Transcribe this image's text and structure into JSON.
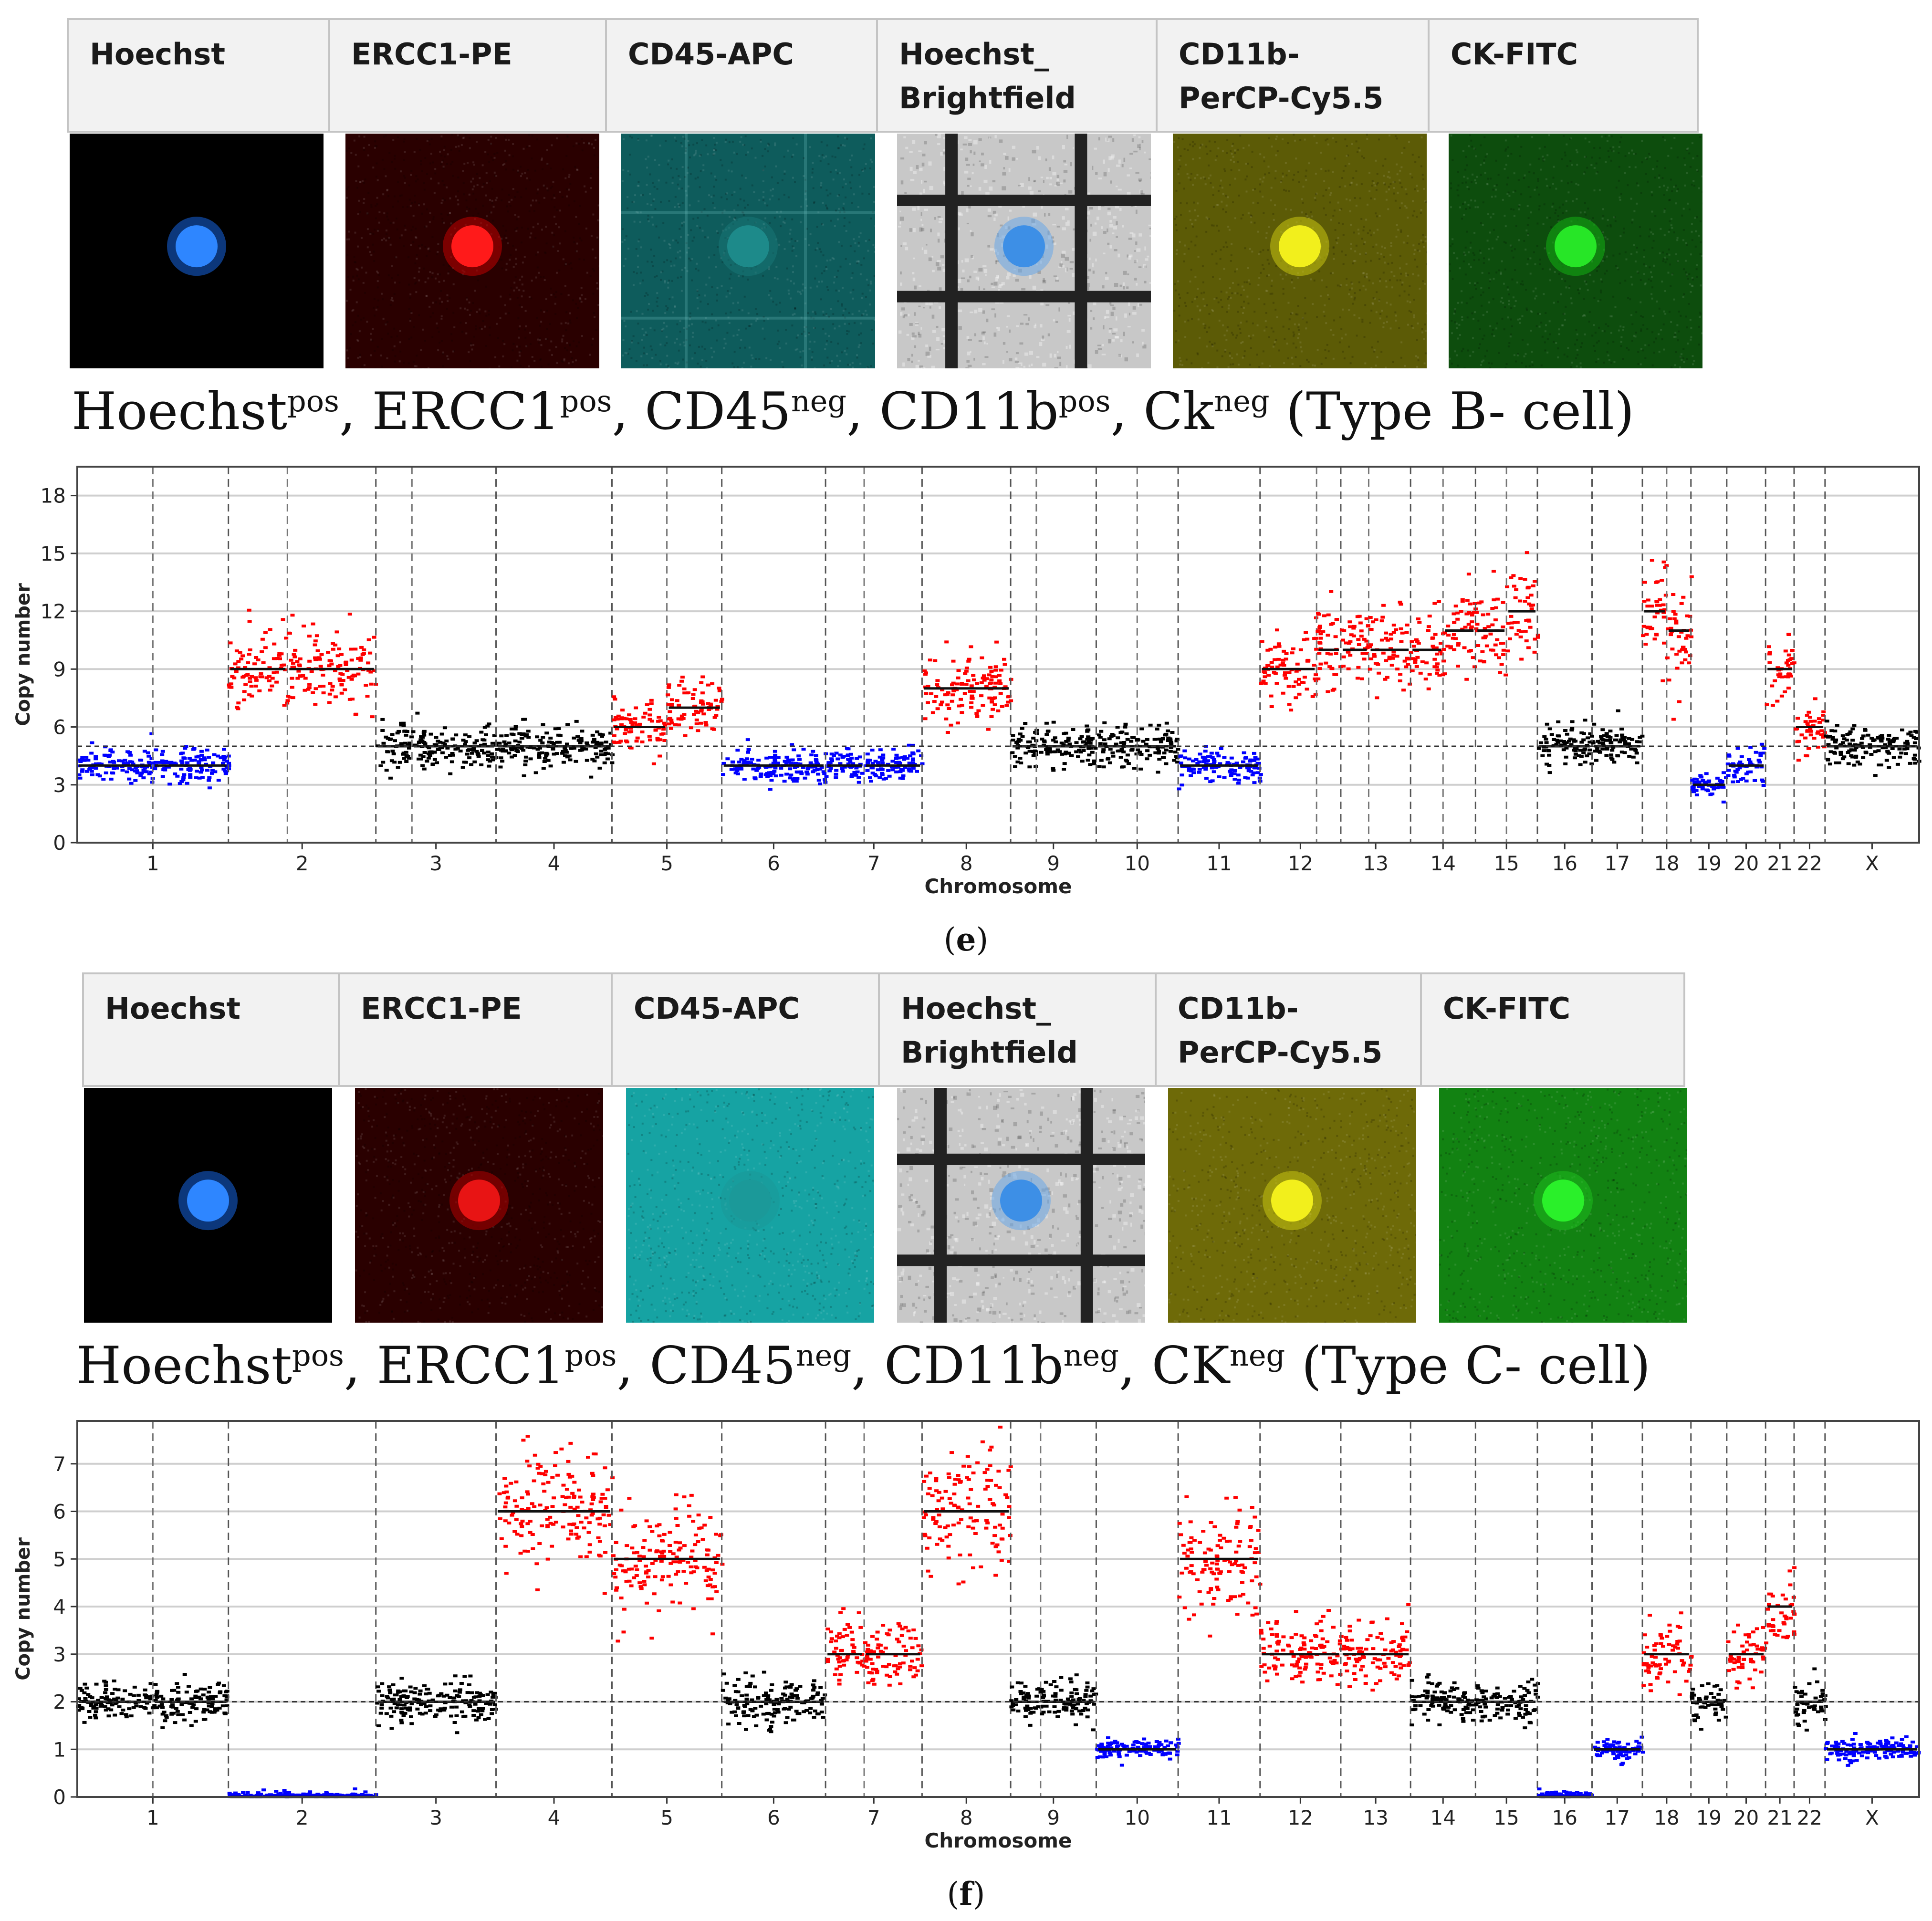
{
  "panels": [
    {
      "label_open": "(",
      "label_letter": "e",
      "label_close": ")",
      "channels": [
        {
          "label": "Hoechst",
          "bg": "#000000",
          "dot": "#2e86ff",
          "dot_glow": "#1565e0",
          "pattern": "none"
        },
        {
          "label": "ERCC1-PE",
          "bg": "#2a0000",
          "dot": "#ff1a1a",
          "dot_glow": "#c00000",
          "pattern": "noise"
        },
        {
          "label": "CD45-APC",
          "bg": "#0e5c5c",
          "dot": "#1d8a8a",
          "dot_glow": "#177777",
          "pattern": "grid"
        },
        {
          "label": "Hoechst_\nBrightfield",
          "bg": "#c8c8c8",
          "dot": "#3d8fe6",
          "dot_glow": "#6aa8e8",
          "pattern": "bf"
        },
        {
          "label": "CD11b-\nPerCP-Cy5.5",
          "bg": "#5c5b06",
          "dot": "#f2ef1c",
          "dot_glow": "#c9c412",
          "pattern": "noise"
        },
        {
          "label": "CK-FITC",
          "bg": "#0d4d0d",
          "dot": "#27e627",
          "dot_glow": "#14b014",
          "pattern": "noise"
        }
      ],
      "marker_text": {
        "hoechst": "Hoechst",
        "hoechst_sup": "pos",
        "ercc1": "ERCC1",
        "ercc1_sup": "pos",
        "cd45": "CD45",
        "cd45_sup": "neg",
        "cd11b": "CD11b",
        "cd11b_sup": "pos",
        "ck": "Ck",
        "ck_sup": "neg",
        "type": "(Type B- cell)"
      }
    },
    {
      "label_open": "(",
      "label_letter": "f",
      "label_close": ")",
      "channels": [
        {
          "label": "Hoechst",
          "bg": "#000000",
          "dot": "#2e86ff",
          "dot_glow": "#1565e0",
          "pattern": "none"
        },
        {
          "label": "ERCC1-PE",
          "bg": "#2a0000",
          "dot": "#e81414",
          "dot_glow": "#b00000",
          "pattern": "noise"
        },
        {
          "label": "CD45-APC",
          "bg": "#16a3a3",
          "dot": "#1b9999",
          "dot_glow": "#1b9999",
          "pattern": "noise"
        },
        {
          "label": "Hoechst_\nBrightfield",
          "bg": "#c8c8c8",
          "dot": "#3d8fe6",
          "dot_glow": "#6aa8e8",
          "pattern": "bf"
        },
        {
          "label": "CD11b-\nPerCP-Cy5.5",
          "bg": "#6e6a08",
          "dot": "#f2ef1c",
          "dot_glow": "#c9c412",
          "pattern": "noise"
        },
        {
          "label": "CK-FITC",
          "bg": "#128212",
          "dot": "#2af02a",
          "dot_glow": "#1dbd1d",
          "pattern": "noise"
        }
      ],
      "marker_text": {
        "hoechst": "Hoechst",
        "hoechst_sup": "pos",
        "ercc1": "ERCC1",
        "ercc1_sup": "pos",
        "cd45": "CD45",
        "cd45_sup": "neg",
        "cd11b": "CD11b",
        "cd11b_sup": "neg",
        "ck": "CK",
        "ck_sup": "neg",
        "type": "(Type C- cell)"
      }
    }
  ],
  "colors": {
    "gain": "#ff0000",
    "loss": "#0000ff",
    "neutral": "#000000"
  },
  "chart_data": [
    {
      "type": "scatter",
      "title": "",
      "xlabel": "Chromosome",
      "ylabel": "Copy number",
      "ylim": [
        0,
        19.5
      ],
      "yticks": [
        0,
        3,
        6,
        9,
        12,
        15,
        18
      ],
      "baseline": 5,
      "grid": true,
      "chromosomes": [
        {
          "name": "1",
          "size": 249,
          "segments": [
            {
              "f": 0.5,
              "v": 4
            },
            {
              "f": 0.5,
              "v": 4
            }
          ]
        },
        {
          "name": "2",
          "size": 243,
          "segments": [
            {
              "f": 0.4,
              "v": 9
            },
            {
              "f": 0.6,
              "v": 9
            }
          ]
        },
        {
          "name": "3",
          "size": 198,
          "segments": [
            {
              "f": 0.3,
              "v": 5
            },
            {
              "f": 0.7,
              "v": 5
            }
          ]
        },
        {
          "name": "4",
          "size": 191,
          "segments": [
            {
              "f": 1.0,
              "v": 5
            }
          ]
        },
        {
          "name": "5",
          "size": 181,
          "segments": [
            {
              "f": 0.5,
              "v": 6
            },
            {
              "f": 0.5,
              "v": 7
            }
          ]
        },
        {
          "name": "6",
          "size": 171,
          "segments": [
            {
              "f": 1.0,
              "v": 4
            }
          ]
        },
        {
          "name": "7",
          "size": 159,
          "segments": [
            {
              "f": 0.4,
              "v": 4
            },
            {
              "f": 0.6,
              "v": 4
            }
          ]
        },
        {
          "name": "8",
          "size": 146,
          "segments": [
            {
              "f": 1.0,
              "v": 8
            }
          ]
        },
        {
          "name": "9",
          "size": 141,
          "segments": [
            {
              "f": 0.3,
              "v": 5
            },
            {
              "f": 0.7,
              "v": 5
            }
          ]
        },
        {
          "name": "10",
          "size": 135,
          "segments": [
            {
              "f": 0.5,
              "v": 5
            },
            {
              "f": 0.5,
              "v": 5
            }
          ]
        },
        {
          "name": "11",
          "size": 135,
          "segments": [
            {
              "f": 1.0,
              "v": 4
            }
          ]
        },
        {
          "name": "12",
          "size": 133,
          "segments": [
            {
              "f": 0.7,
              "v": 9
            },
            {
              "f": 0.3,
              "v": 10
            }
          ]
        },
        {
          "name": "13",
          "size": 115,
          "segments": [
            {
              "f": 0.4,
              "v": 10
            },
            {
              "f": 0.6,
              "v": 10
            }
          ]
        },
        {
          "name": "14",
          "size": 107,
          "segments": [
            {
              "f": 0.5,
              "v": 10
            },
            {
              "f": 0.5,
              "v": 11
            }
          ]
        },
        {
          "name": "15",
          "size": 102,
          "segments": [
            {
              "f": 0.5,
              "v": 11
            },
            {
              "f": 0.5,
              "v": 12
            }
          ]
        },
        {
          "name": "16",
          "size": 90,
          "segments": [
            {
              "f": 1.0,
              "v": 5
            }
          ]
        },
        {
          "name": "17",
          "size": 83,
          "segments": [
            {
              "f": 1.0,
              "v": 5
            }
          ]
        },
        {
          "name": "18",
          "size": 80,
          "segments": [
            {
              "f": 0.5,
              "v": 12
            },
            {
              "f": 0.5,
              "v": 11
            }
          ]
        },
        {
          "name": "19",
          "size": 59,
          "segments": [
            {
              "f": 1.0,
              "v": 3
            }
          ]
        },
        {
          "name": "20",
          "size": 64,
          "segments": [
            {
              "f": 1.0,
              "v": 4
            }
          ]
        },
        {
          "name": "21",
          "size": 47,
          "segments": [
            {
              "f": 1.0,
              "v": 9
            }
          ]
        },
        {
          "name": "22",
          "size": 51,
          "segments": [
            {
              "f": 1.0,
              "v": 6
            }
          ]
        },
        {
          "name": "X",
          "size": 155,
          "segments": [
            {
              "f": 1.0,
              "v": 5
            }
          ]
        }
      ]
    },
    {
      "type": "scatter",
      "title": "",
      "xlabel": "Chromosome",
      "ylabel": "Copy number",
      "ylim": [
        0,
        7.9
      ],
      "yticks": [
        0,
        1,
        2,
        3,
        4,
        5,
        6,
        7
      ],
      "baseline": 2,
      "grid": true,
      "chromosomes": [
        {
          "name": "1",
          "size": 249,
          "segments": [
            {
              "f": 0.5,
              "v": 2
            },
            {
              "f": 0.5,
              "v": 2
            }
          ]
        },
        {
          "name": "2",
          "size": 243,
          "segments": [
            {
              "f": 1.0,
              "v": 0
            }
          ]
        },
        {
          "name": "3",
          "size": 198,
          "segments": [
            {
              "f": 1.0,
              "v": 2
            }
          ]
        },
        {
          "name": "4",
          "size": 191,
          "segments": [
            {
              "f": 1.0,
              "v": 6
            }
          ]
        },
        {
          "name": "5",
          "size": 181,
          "segments": [
            {
              "f": 1.0,
              "v": 5
            }
          ]
        },
        {
          "name": "6",
          "size": 171,
          "segments": [
            {
              "f": 1.0,
              "v": 2
            }
          ]
        },
        {
          "name": "7",
          "size": 159,
          "segments": [
            {
              "f": 0.4,
              "v": 3
            },
            {
              "f": 0.6,
              "v": 3
            }
          ]
        },
        {
          "name": "8",
          "size": 146,
          "segments": [
            {
              "f": 1.0,
              "v": 6
            }
          ]
        },
        {
          "name": "9",
          "size": 141,
          "segments": [
            {
              "f": 0.35,
              "v": 2
            },
            {
              "f": 0.65,
              "v": 2
            }
          ]
        },
        {
          "name": "10",
          "size": 135,
          "segments": [
            {
              "f": 1.0,
              "v": 1
            }
          ]
        },
        {
          "name": "11",
          "size": 135,
          "segments": [
            {
              "f": 1.0,
              "v": 5
            }
          ]
        },
        {
          "name": "12",
          "size": 133,
          "segments": [
            {
              "f": 1.0,
              "v": 3
            }
          ]
        },
        {
          "name": "13",
          "size": 115,
          "segments": [
            {
              "f": 1.0,
              "v": 3
            }
          ]
        },
        {
          "name": "14",
          "size": 107,
          "segments": [
            {
              "f": 1.0,
              "v": 2
            }
          ]
        },
        {
          "name": "15",
          "size": 102,
          "segments": [
            {
              "f": 1.0,
              "v": 2
            }
          ]
        },
        {
          "name": "16",
          "size": 90,
          "segments": [
            {
              "f": 1.0,
              "v": 0
            }
          ]
        },
        {
          "name": "17",
          "size": 83,
          "segments": [
            {
              "f": 1.0,
              "v": 1
            }
          ]
        },
        {
          "name": "18",
          "size": 80,
          "segments": [
            {
              "f": 1.0,
              "v": 3
            }
          ]
        },
        {
          "name": "19",
          "size": 59,
          "segments": [
            {
              "f": 1.0,
              "v": 2
            }
          ]
        },
        {
          "name": "20",
          "size": 64,
          "segments": [
            {
              "f": 1.0,
              "v": 3
            }
          ]
        },
        {
          "name": "21",
          "size": 47,
          "segments": [
            {
              "f": 1.0,
              "v": 4
            }
          ]
        },
        {
          "name": "22",
          "size": 51,
          "segments": [
            {
              "f": 1.0,
              "v": 2
            }
          ]
        },
        {
          "name": "X",
          "size": 155,
          "segments": [
            {
              "f": 1.0,
              "v": 1
            }
          ]
        }
      ]
    }
  ]
}
